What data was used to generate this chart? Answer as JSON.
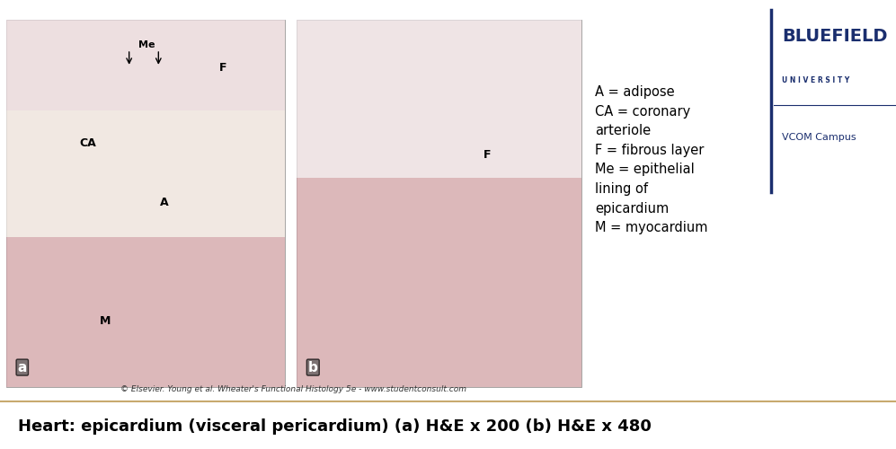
{
  "title": "Heart: epicardium (visceral pericardium) (a) H&E x 200 (b) H&E x 480",
  "title_fontsize": 13,
  "title_fontweight": "bold",
  "caption": "© Elsevier. Young et al. Wheater's Functional Histology 5e - www.studentconsult.com",
  "legend_lines": [
    "A = adipose",
    "CA = coronary",
    "arteriole",
    "F = fibrous layer",
    "Me = epithelial",
    "lining of",
    "epicardium",
    "M = myocardium"
  ],
  "legend_fontsize": 10.5,
  "logo_text_top": "BLUEFIELD",
  "logo_text_mid": "U N I V E R S I T Y",
  "logo_text_bot": "VCOM Campus",
  "logo_color": "#1a2e6e",
  "background_color": "#ffffff",
  "divider_color": "#c8a96e",
  "image_area_bg": "#d0c0b0",
  "fig_width": 9.97,
  "fig_height": 5.0,
  "dpi": 100
}
